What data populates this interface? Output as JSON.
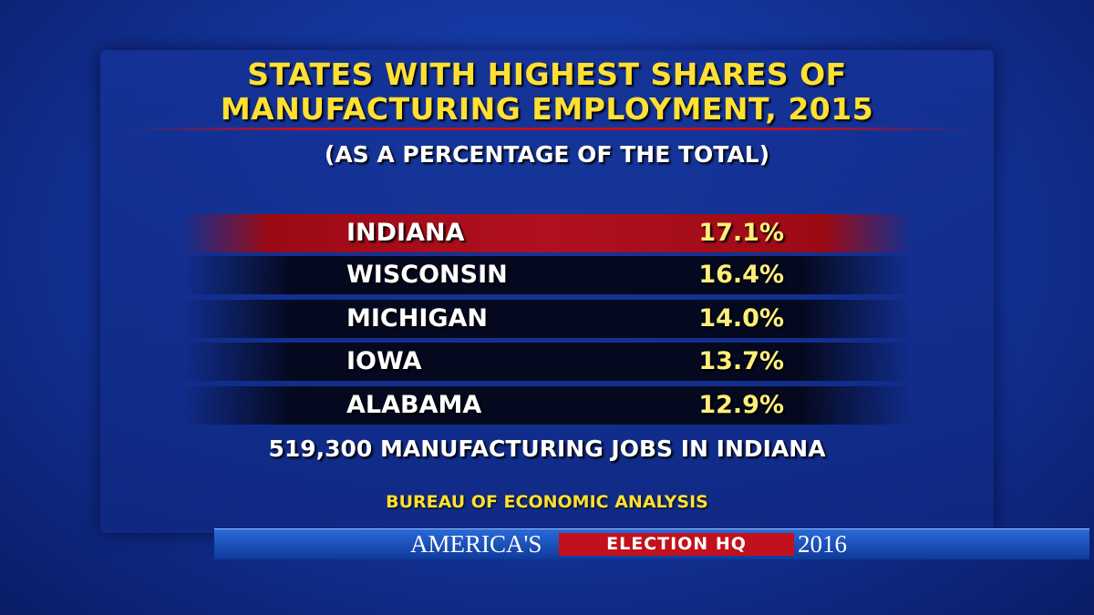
{
  "title_lines": [
    "STATES WITH HIGHEST SHARES OF",
    "MANUFACTURING EMPLOYMENT, 2015"
  ],
  "subtitle": "(AS A PERCENTAGE OF THE TOTAL)",
  "table": {
    "rows": [
      [
        "INDIANA",
        "17.1%"
      ],
      [
        "WISCONSIN",
        "16.4%"
      ],
      [
        "MICHIGAN",
        "14.0%"
      ],
      [
        "IOWA",
        "13.7%"
      ],
      [
        "ALABAMA",
        "12.9%"
      ]
    ]
  },
  "note": "519,300 MANUFACTURING JOBS IN INDIANA",
  "source": "BUREAU OF ECONOMIC ANALYSIS",
  "banner": {
    "left": "AMERICA'S",
    "middle": "ELECTION HQ",
    "right": "2016"
  }
}
